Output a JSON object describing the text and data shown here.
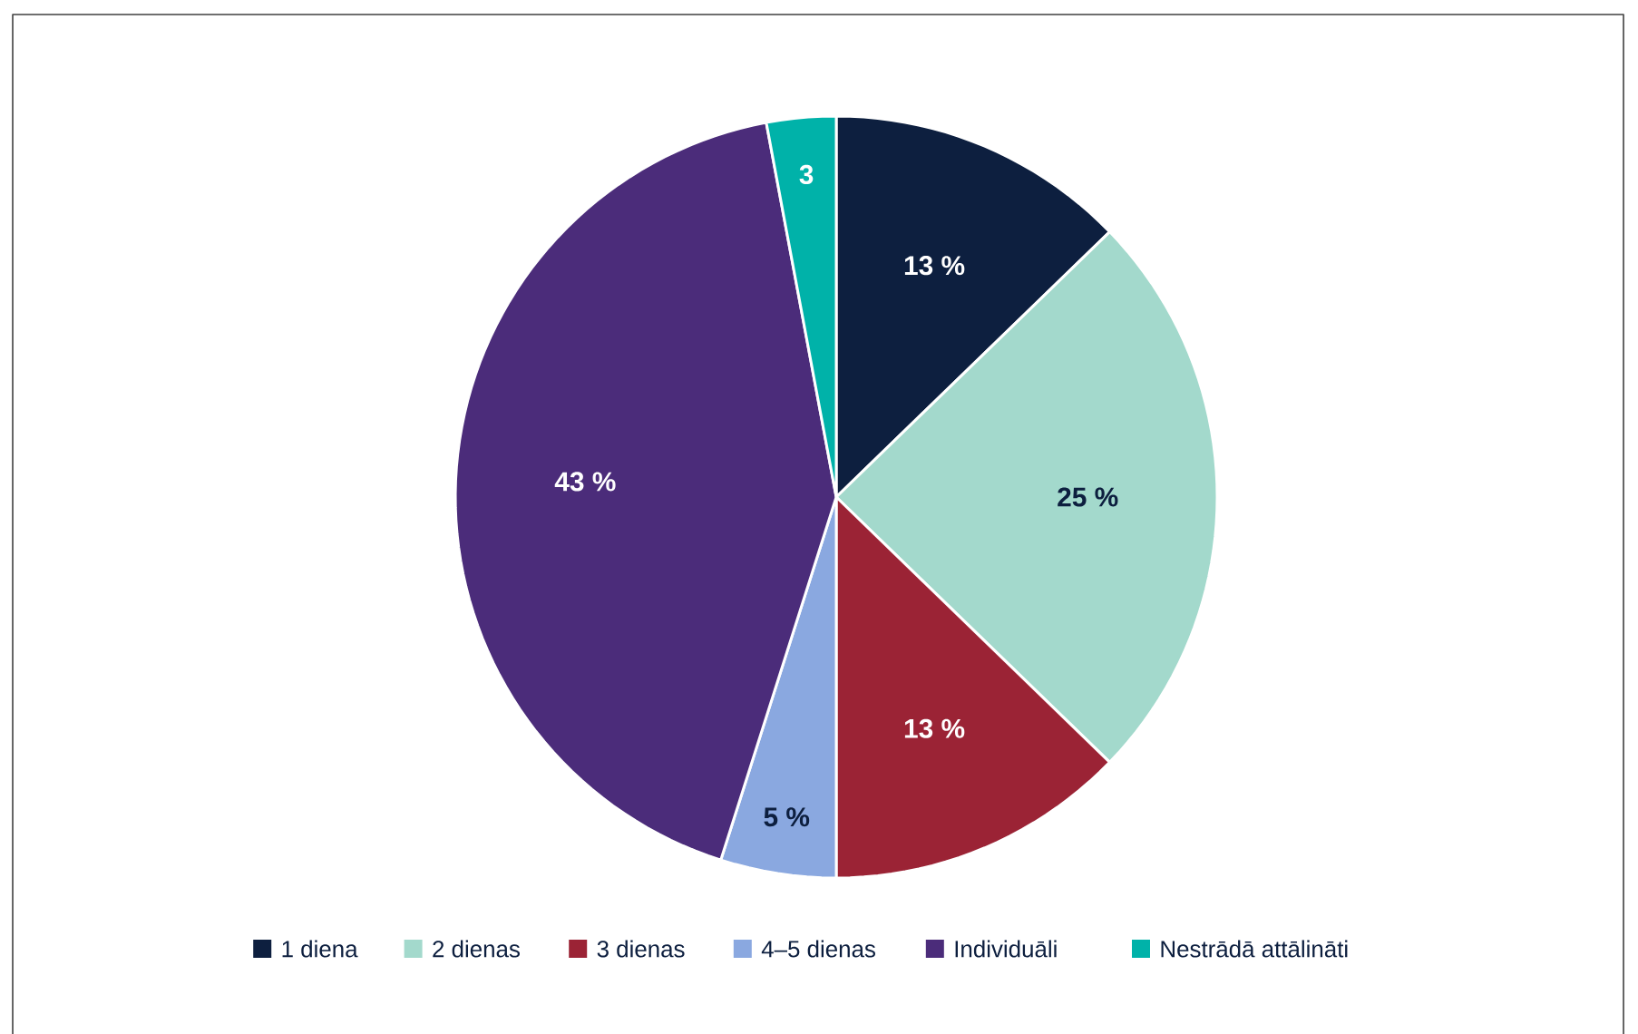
{
  "chart_data": {
    "type": "pie",
    "categories": [
      "1 diena",
      "2 dienas",
      "3 dienas",
      "4–5 dienas",
      "Individuāli",
      "Nestrādā attālināti"
    ],
    "values": [
      13,
      25,
      13,
      5,
      43,
      3
    ],
    "colors": [
      "#0d1f3f",
      "#a3d9cc",
      "#9b2335",
      "#8aa8e0",
      "#4b2c7a",
      "#00b2a9"
    ],
    "value_labels": [
      "13 %",
      "25 %",
      "13 %",
      "5 %",
      "43 %",
      "3"
    ],
    "legend": "bottom"
  }
}
